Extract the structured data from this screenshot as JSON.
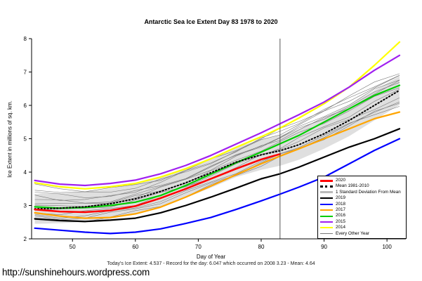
{
  "page": {
    "url_text": "http://sunshinehours.wordpress.com",
    "footer": "Today's Ice Extent: 4.537  - Record for the day: 6.047 which occurred on 2008 3.23  - Mean: 4.64"
  },
  "chart_data": {
    "type": "line",
    "title": "Antarctic Sea Ice Extent Day 83 1978 to 2020",
    "xlabel": "Day of Year",
    "ylabel": "Ice Extent in millions of sq. km.",
    "xlim": [
      43.5,
      103
    ],
    "ylim": [
      2,
      8
    ],
    "xticks": [
      50,
      60,
      70,
      80,
      90,
      100
    ],
    "yticks": [
      2,
      3,
      4,
      5,
      6,
      7,
      8
    ],
    "vline_x": 83,
    "vline_color": "#444444",
    "background_line_color": "#787878",
    "x": [
      44,
      48,
      52,
      56,
      60,
      64,
      68,
      72,
      76,
      80,
      83,
      86,
      90,
      94,
      98,
      102
    ],
    "band": {
      "name": "1 Standard Deviation From Mean",
      "color": "#d9d9d9",
      "upper": [
        3.35,
        3.37,
        3.41,
        3.5,
        3.65,
        3.87,
        4.13,
        4.43,
        4.75,
        4.97,
        5.1,
        5.28,
        5.62,
        6.02,
        6.45,
        6.88
      ],
      "lower": [
        2.45,
        2.47,
        2.51,
        2.6,
        2.75,
        2.97,
        3.23,
        3.53,
        3.85,
        4.07,
        4.19,
        4.37,
        4.7,
        5.08,
        5.55,
        6.02
      ]
    },
    "series": [
      {
        "name": "2014",
        "color": "#ffff00",
        "width": 2.2,
        "dash": "",
        "values": [
          3.68,
          3.56,
          3.5,
          3.56,
          3.66,
          3.85,
          4.1,
          4.4,
          4.74,
          5.06,
          5.32,
          5.62,
          6.05,
          6.55,
          7.2,
          7.9
        ]
      },
      {
        "name": "2015",
        "color": "#a020f0",
        "width": 2.2,
        "dash": "",
        "values": [
          3.75,
          3.64,
          3.6,
          3.66,
          3.76,
          3.95,
          4.2,
          4.5,
          4.84,
          5.18,
          5.45,
          5.72,
          6.1,
          6.55,
          7.05,
          7.5
        ]
      },
      {
        "name": "2016",
        "color": "#00cd00",
        "width": 2.2,
        "dash": "",
        "values": [
          2.96,
          2.92,
          2.94,
          3.0,
          3.1,
          3.3,
          3.6,
          3.94,
          4.28,
          4.6,
          4.85,
          5.1,
          5.5,
          5.9,
          6.3,
          6.6
        ]
      },
      {
        "name": "2017",
        "color": "#ffa500",
        "width": 2.2,
        "dash": "",
        "values": [
          2.78,
          2.68,
          2.62,
          2.64,
          2.75,
          2.95,
          3.25,
          3.58,
          3.92,
          4.25,
          4.48,
          4.7,
          5.0,
          5.3,
          5.6,
          5.8
        ]
      },
      {
        "name": "2018",
        "color": "#0000ff",
        "width": 2.2,
        "dash": "",
        "values": [
          2.32,
          2.26,
          2.2,
          2.16,
          2.2,
          2.3,
          2.46,
          2.64,
          2.88,
          3.14,
          3.34,
          3.55,
          3.85,
          4.25,
          4.65,
          5.0
        ]
      },
      {
        "name": "2019",
        "color": "#000000",
        "width": 2.2,
        "dash": "",
        "values": [
          2.6,
          2.55,
          2.52,
          2.56,
          2.62,
          2.78,
          3.0,
          3.25,
          3.52,
          3.8,
          3.95,
          4.15,
          4.45,
          4.75,
          5.0,
          5.3
        ]
      },
      {
        "name": "Mean 1981-2010",
        "color": "#000000",
        "width": 2.0,
        "dash": "1.5,3",
        "values": [
          2.9,
          2.92,
          2.96,
          3.05,
          3.2,
          3.42,
          3.68,
          3.98,
          4.3,
          4.52,
          4.64,
          4.82,
          5.15,
          5.55,
          6.0,
          6.45
        ]
      },
      {
        "name": "2020",
        "color": "#ff0000",
        "width": 2.5,
        "dash": "",
        "values": [
          2.88,
          2.82,
          2.8,
          2.85,
          2.98,
          3.22,
          3.5,
          3.8,
          4.1,
          4.38,
          4.54,
          null,
          null,
          null,
          null,
          null
        ]
      }
    ],
    "background_series": [
      {
        "values": [
          3.4,
          3.3,
          3.26,
          3.3,
          3.4,
          3.6,
          3.85,
          4.15,
          4.48,
          4.8,
          5.02,
          5.28,
          5.62,
          5.98,
          6.35,
          6.7
        ]
      },
      {
        "values": [
          2.7,
          2.66,
          2.7,
          2.8,
          2.95,
          3.15,
          3.4,
          3.7,
          4.0,
          4.3,
          4.52,
          4.78,
          5.1,
          5.42,
          5.75,
          6.0
        ]
      },
      {
        "values": [
          3.1,
          3.05,
          3.02,
          3.1,
          3.25,
          3.5,
          3.8,
          4.1,
          4.44,
          4.78,
          5.0,
          5.25,
          5.6,
          5.95,
          6.35,
          6.7
        ]
      },
      {
        "values": [
          2.55,
          2.5,
          2.55,
          2.65,
          2.8,
          3.0,
          3.28,
          3.58,
          3.9,
          4.22,
          4.44,
          4.68,
          5.02,
          5.38,
          5.78,
          6.1
        ]
      },
      {
        "values": [
          3.3,
          3.2,
          3.16,
          3.26,
          3.44,
          3.7,
          4.0,
          4.3,
          4.64,
          4.98,
          5.22,
          5.5,
          5.85,
          6.2,
          6.6,
          6.9
        ]
      },
      {
        "values": [
          2.9,
          2.86,
          2.9,
          3.0,
          3.15,
          3.35,
          3.6,
          3.9,
          4.2,
          4.52,
          4.74,
          5.0,
          5.35,
          5.7,
          6.1,
          6.45
        ]
      },
      {
        "values": [
          3.6,
          3.5,
          3.46,
          3.5,
          3.6,
          3.8,
          4.05,
          4.35,
          4.68,
          5.02,
          5.26,
          5.52,
          5.88,
          6.25,
          6.68,
          7.0
        ]
      },
      {
        "values": [
          2.8,
          2.76,
          2.8,
          2.9,
          3.05,
          3.28,
          3.54,
          3.84,
          4.14,
          4.48,
          4.7,
          4.95,
          5.28,
          5.58,
          5.92,
          6.2
        ]
      },
      {
        "values": [
          3.2,
          3.12,
          3.08,
          3.15,
          3.3,
          3.55,
          3.84,
          4.14,
          4.48,
          4.82,
          5.05,
          5.32,
          5.68,
          6.05,
          6.45,
          6.75
        ]
      },
      {
        "values": [
          2.65,
          2.6,
          2.65,
          2.75,
          2.9,
          3.1,
          3.35,
          3.65,
          3.95,
          4.28,
          4.5,
          4.74,
          5.06,
          5.4,
          5.8,
          6.15
        ]
      },
      {
        "values": [
          3.5,
          3.4,
          3.36,
          3.42,
          3.55,
          3.75,
          4.0,
          4.3,
          4.6,
          4.94,
          5.16,
          5.42,
          5.78,
          6.15,
          6.55,
          6.85
        ]
      },
      {
        "values": [
          3.0,
          2.95,
          3.0,
          3.1,
          3.25,
          3.45,
          3.7,
          4.0,
          4.34,
          4.68,
          4.9,
          5.15,
          5.5,
          5.85,
          6.22,
          6.55
        ]
      }
    ],
    "legend": [
      {
        "label": "2020",
        "color": "#ff0000",
        "lw": 3,
        "dash": ""
      },
      {
        "label": "Mean 1981-2010",
        "color": "#000000",
        "lw": 3,
        "dash": "dotted"
      },
      {
        "label": "1 Standard Deviation From Mean",
        "color": "#bbbbbb",
        "lw": 3,
        "dash": ""
      },
      {
        "label": "2019",
        "color": "#000000",
        "lw": 2,
        "dash": ""
      },
      {
        "label": "2018",
        "color": "#0000ff",
        "lw": 2,
        "dash": ""
      },
      {
        "label": "2017",
        "color": "#ffa500",
        "lw": 2,
        "dash": ""
      },
      {
        "label": "2016",
        "color": "#00cd00",
        "lw": 2,
        "dash": ""
      },
      {
        "label": "2015",
        "color": "#a020f0",
        "lw": 2,
        "dash": ""
      },
      {
        "label": "2014",
        "color": "#ffff00",
        "lw": 2,
        "dash": ""
      },
      {
        "label": "Every Other Year",
        "color": "#787878",
        "lw": 1,
        "dash": ""
      }
    ]
  }
}
